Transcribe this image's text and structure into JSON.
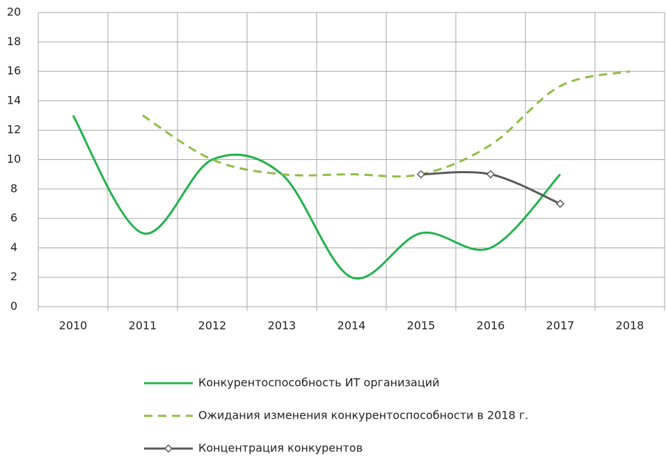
{
  "chart_data": {
    "type": "line",
    "categories": [
      "2010",
      "2011",
      "2012",
      "2013",
      "2014",
      "2015",
      "2016",
      "2017",
      "2018"
    ],
    "series": [
      {
        "name": "Конкурентоспособность ИТ организаций",
        "color": "#21b24b",
        "style": "solid",
        "values": [
          13,
          5,
          10,
          9,
          2,
          5,
          4,
          9,
          null
        ]
      },
      {
        "name": "Ожидания изменения конкурентоспособности в 2018 г.",
        "color": "#8fbc45",
        "style": "dashed",
        "values": [
          null,
          13,
          10,
          9,
          9,
          9,
          11,
          15,
          16
        ]
      },
      {
        "name": "Концентрация конкурентов",
        "color": "#595959",
        "style": "markers",
        "values": [
          null,
          null,
          null,
          null,
          null,
          9,
          9,
          7,
          null
        ]
      }
    ],
    "ylim": [
      0,
      20
    ],
    "yticks": [
      0,
      2,
      4,
      6,
      8,
      10,
      12,
      14,
      16,
      18,
      20
    ],
    "grid": true,
    "smooth": true,
    "legend": "bottom"
  }
}
